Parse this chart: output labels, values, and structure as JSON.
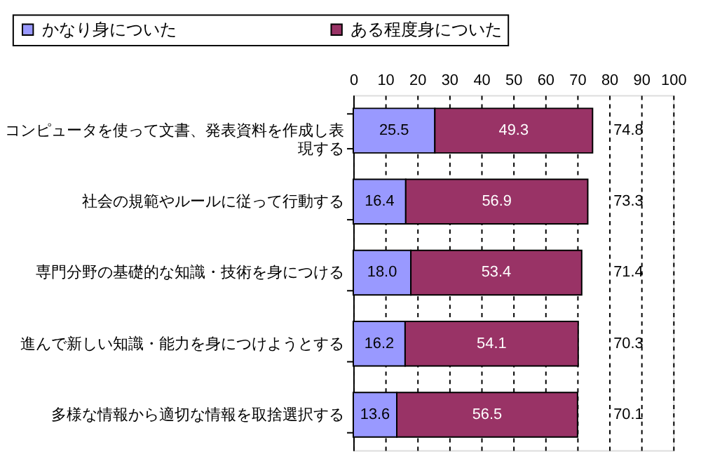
{
  "chart_data": {
    "type": "bar",
    "orientation": "horizontal",
    "stacked": true,
    "categories": [
      "コンピュータを使って文書、発表資料を作成し表現する",
      "社会の規範やルールに従って行動する",
      "専門分野の基礎的な知識・技術を身につける",
      "進んで新しい知識・能力を身につけようとする",
      "多様な情報から適切な情報を取捨選択する"
    ],
    "series": [
      {
        "name": "かなり身についた",
        "color": "#9999ff",
        "values": [
          25.5,
          16.4,
          18.0,
          16.2,
          13.6
        ],
        "value_labels": [
          "25.5",
          "16.4",
          "18.0",
          "16.2",
          "13.6"
        ]
      },
      {
        "name": "ある程度身についた",
        "color": "#993366",
        "values": [
          49.3,
          56.9,
          53.4,
          54.1,
          56.5
        ],
        "value_labels": [
          "49.3",
          "56.9",
          "53.4",
          "54.1",
          "56.5"
        ]
      }
    ],
    "totals": [
      "74.8",
      "73.3",
      "71.4",
      "70.3",
      "70.1"
    ],
    "xlim": [
      0,
      100
    ],
    "xticks": [
      0,
      10,
      20,
      30,
      40,
      50,
      60,
      70,
      80,
      90,
      100
    ],
    "grid": "x",
    "legend": "top"
  }
}
